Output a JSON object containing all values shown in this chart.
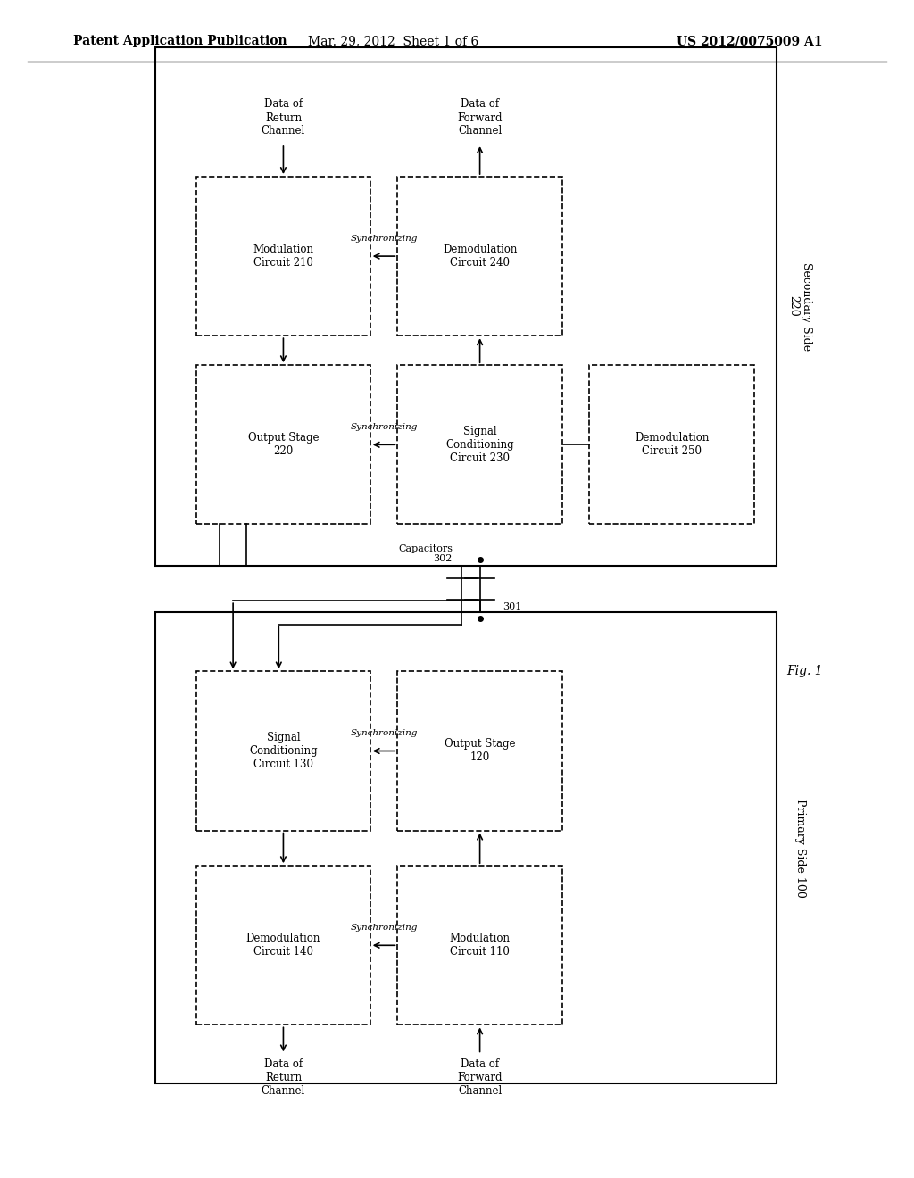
{
  "bg_color": "#ffffff",
  "header_left": "Patent Application Publication",
  "header_mid": "Mar. 29, 2012  Sheet 1 of 6",
  "header_right": "US 2012/0075009 A1",
  "fig_label": "Fig. 1",
  "secondary_label": "Secondary Side\n220",
  "primary_label": "Primary Side 100",
  "capacitors_label": "Capacitors\n302",
  "num_301": "301"
}
